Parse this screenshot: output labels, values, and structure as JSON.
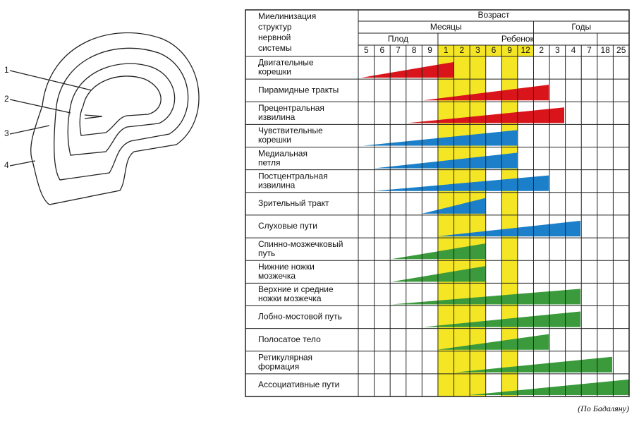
{
  "head": {
    "labels": [
      "1",
      "2",
      "3",
      "4"
    ]
  },
  "table": {
    "corner": [
      "Миелинизация",
      "структур",
      "нервной",
      "системы"
    ],
    "age": "Возраст",
    "months": "Месяцы",
    "years": "Годы",
    "fetus": "Плод",
    "child": "Ребенок",
    "columns": [
      5,
      6,
      7,
      8,
      9,
      1,
      2,
      3,
      6,
      9,
      12,
      2,
      3,
      4,
      7,
      18,
      25
    ],
    "rows": [
      [
        "Двигательные",
        "корешки"
      ],
      [
        "Пирамидные тракты"
      ],
      [
        "Прецентральная",
        "извилина"
      ],
      [
        "Чувствительные",
        "корешки"
      ],
      [
        "Медиальная",
        "петля"
      ],
      [
        "Постцентральная",
        "извилина"
      ],
      [
        "Зрительный тракт"
      ],
      [
        "Слуховые пути"
      ],
      [
        "Спинно-мозжечковый",
        "путь"
      ],
      [
        "Нижние ножки",
        "мозжечка"
      ],
      [
        "Верхние и средние",
        "ножки мозжечка"
      ],
      [
        "Лобно-мостовой путь"
      ],
      [
        "Полосатое тело"
      ],
      [
        "Ретикулярная",
        "формация"
      ],
      [
        "Ассоциативные пути"
      ]
    ]
  },
  "caption": "(По Бадаляну)"
}
